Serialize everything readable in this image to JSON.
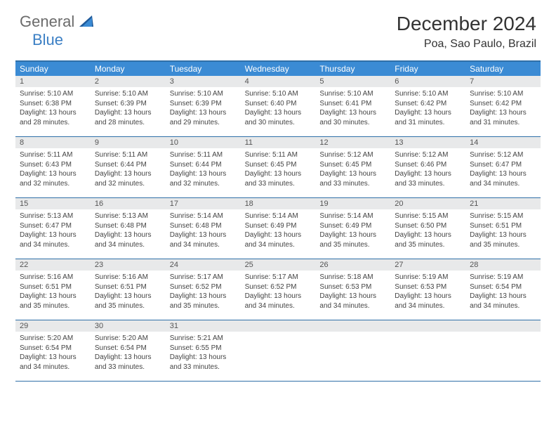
{
  "logo": {
    "text1": "General",
    "text2": "Blue"
  },
  "title": "December 2024",
  "location": "Poa, Sao Paulo, Brazil",
  "colors": {
    "header_bg": "#3b8bd4",
    "border": "#2f6fa8",
    "daynum_bg": "#e8e9ea",
    "logo_gray": "#6b6b6b",
    "logo_blue": "#3b7fc4"
  },
  "day_names": [
    "Sunday",
    "Monday",
    "Tuesday",
    "Wednesday",
    "Thursday",
    "Friday",
    "Saturday"
  ],
  "weeks": [
    [
      {
        "n": "1",
        "sr": "5:10 AM",
        "ss": "6:38 PM",
        "dl": "13 hours and 28 minutes."
      },
      {
        "n": "2",
        "sr": "5:10 AM",
        "ss": "6:39 PM",
        "dl": "13 hours and 28 minutes."
      },
      {
        "n": "3",
        "sr": "5:10 AM",
        "ss": "6:39 PM",
        "dl": "13 hours and 29 minutes."
      },
      {
        "n": "4",
        "sr": "5:10 AM",
        "ss": "6:40 PM",
        "dl": "13 hours and 30 minutes."
      },
      {
        "n": "5",
        "sr": "5:10 AM",
        "ss": "6:41 PM",
        "dl": "13 hours and 30 minutes."
      },
      {
        "n": "6",
        "sr": "5:10 AM",
        "ss": "6:42 PM",
        "dl": "13 hours and 31 minutes."
      },
      {
        "n": "7",
        "sr": "5:10 AM",
        "ss": "6:42 PM",
        "dl": "13 hours and 31 minutes."
      }
    ],
    [
      {
        "n": "8",
        "sr": "5:11 AM",
        "ss": "6:43 PM",
        "dl": "13 hours and 32 minutes."
      },
      {
        "n": "9",
        "sr": "5:11 AM",
        "ss": "6:44 PM",
        "dl": "13 hours and 32 minutes."
      },
      {
        "n": "10",
        "sr": "5:11 AM",
        "ss": "6:44 PM",
        "dl": "13 hours and 32 minutes."
      },
      {
        "n": "11",
        "sr": "5:11 AM",
        "ss": "6:45 PM",
        "dl": "13 hours and 33 minutes."
      },
      {
        "n": "12",
        "sr": "5:12 AM",
        "ss": "6:45 PM",
        "dl": "13 hours and 33 minutes."
      },
      {
        "n": "13",
        "sr": "5:12 AM",
        "ss": "6:46 PM",
        "dl": "13 hours and 33 minutes."
      },
      {
        "n": "14",
        "sr": "5:12 AM",
        "ss": "6:47 PM",
        "dl": "13 hours and 34 minutes."
      }
    ],
    [
      {
        "n": "15",
        "sr": "5:13 AM",
        "ss": "6:47 PM",
        "dl": "13 hours and 34 minutes."
      },
      {
        "n": "16",
        "sr": "5:13 AM",
        "ss": "6:48 PM",
        "dl": "13 hours and 34 minutes."
      },
      {
        "n": "17",
        "sr": "5:14 AM",
        "ss": "6:48 PM",
        "dl": "13 hours and 34 minutes."
      },
      {
        "n": "18",
        "sr": "5:14 AM",
        "ss": "6:49 PM",
        "dl": "13 hours and 34 minutes."
      },
      {
        "n": "19",
        "sr": "5:14 AM",
        "ss": "6:49 PM",
        "dl": "13 hours and 35 minutes."
      },
      {
        "n": "20",
        "sr": "5:15 AM",
        "ss": "6:50 PM",
        "dl": "13 hours and 35 minutes."
      },
      {
        "n": "21",
        "sr": "5:15 AM",
        "ss": "6:51 PM",
        "dl": "13 hours and 35 minutes."
      }
    ],
    [
      {
        "n": "22",
        "sr": "5:16 AM",
        "ss": "6:51 PM",
        "dl": "13 hours and 35 minutes."
      },
      {
        "n": "23",
        "sr": "5:16 AM",
        "ss": "6:51 PM",
        "dl": "13 hours and 35 minutes."
      },
      {
        "n": "24",
        "sr": "5:17 AM",
        "ss": "6:52 PM",
        "dl": "13 hours and 35 minutes."
      },
      {
        "n": "25",
        "sr": "5:17 AM",
        "ss": "6:52 PM",
        "dl": "13 hours and 34 minutes."
      },
      {
        "n": "26",
        "sr": "5:18 AM",
        "ss": "6:53 PM",
        "dl": "13 hours and 34 minutes."
      },
      {
        "n": "27",
        "sr": "5:19 AM",
        "ss": "6:53 PM",
        "dl": "13 hours and 34 minutes."
      },
      {
        "n": "28",
        "sr": "5:19 AM",
        "ss": "6:54 PM",
        "dl": "13 hours and 34 minutes."
      }
    ],
    [
      {
        "n": "29",
        "sr": "5:20 AM",
        "ss": "6:54 PM",
        "dl": "13 hours and 34 minutes."
      },
      {
        "n": "30",
        "sr": "5:20 AM",
        "ss": "6:54 PM",
        "dl": "13 hours and 33 minutes."
      },
      {
        "n": "31",
        "sr": "5:21 AM",
        "ss": "6:55 PM",
        "dl": "13 hours and 33 minutes."
      },
      null,
      null,
      null,
      null
    ]
  ],
  "labels": {
    "sunrise": "Sunrise:",
    "sunset": "Sunset:",
    "daylight": "Daylight:"
  }
}
